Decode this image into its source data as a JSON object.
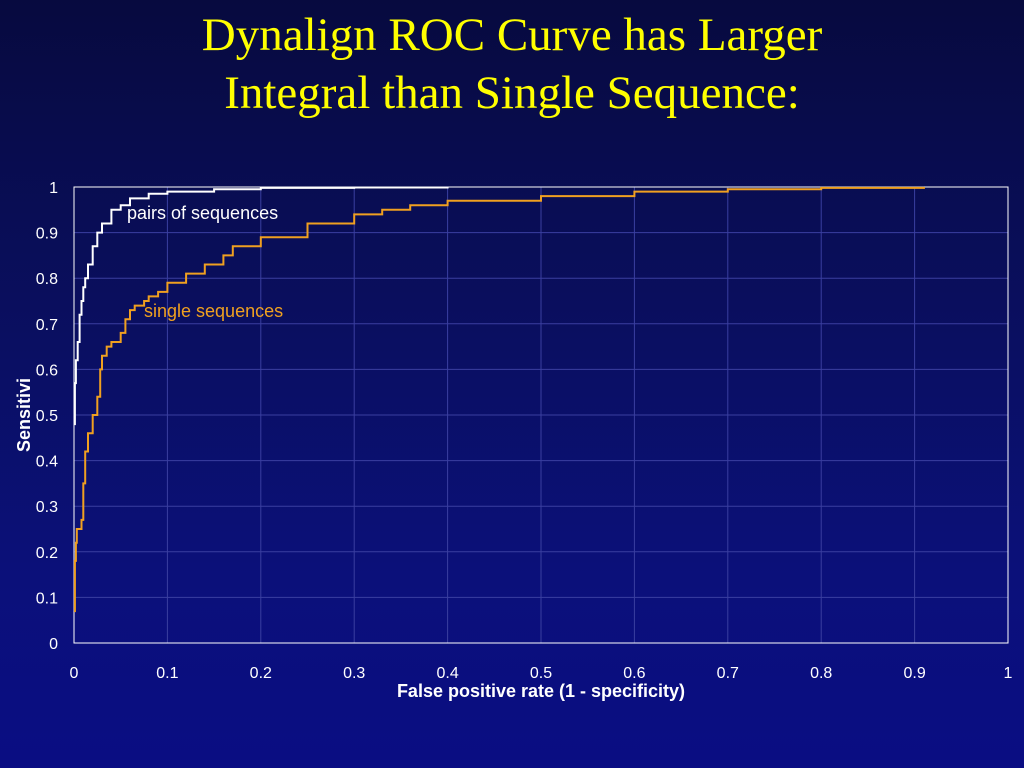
{
  "slide": {
    "title_line1": "Dynalign ROC Curve has Larger",
    "title_line2": "Integral than Single Sequence:"
  },
  "colors": {
    "title": "#ffff00",
    "axis_text": "#ffffff",
    "plot_border": "#ffffff",
    "grid": "#3a3fa0",
    "pairs_series": "#ffffff",
    "single_series": "#f0a020",
    "single_label": "#f0a020"
  },
  "chart_data": {
    "type": "line",
    "xlabel": "False positive rate (1 - specificity)",
    "ylabel": "Sensitivi",
    "xlim": [
      0,
      1
    ],
    "ylim": [
      0,
      1
    ],
    "x_ticks": [
      "0",
      "0.1",
      "0.2",
      "0.3",
      "0.4",
      "0.5",
      "0.6",
      "0.7",
      "0.8",
      "0.9",
      "1"
    ],
    "y_ticks": [
      "0",
      "0.1",
      "0.2",
      "0.3",
      "0.4",
      "0.5",
      "0.6",
      "0.7",
      "0.8",
      "0.9",
      "1"
    ],
    "grid": true,
    "legend": "none",
    "series": [
      {
        "name": "pairs of sequences",
        "points": [
          [
            0.0,
            0.48
          ],
          [
            0.001,
            0.57
          ],
          [
            0.002,
            0.62
          ],
          [
            0.004,
            0.66
          ],
          [
            0.006,
            0.72
          ],
          [
            0.008,
            0.75
          ],
          [
            0.01,
            0.78
          ],
          [
            0.012,
            0.8
          ],
          [
            0.015,
            0.83
          ],
          [
            0.02,
            0.87
          ],
          [
            0.025,
            0.9
          ],
          [
            0.03,
            0.92
          ],
          [
            0.04,
            0.95
          ],
          [
            0.05,
            0.96
          ],
          [
            0.06,
            0.975
          ],
          [
            0.08,
            0.985
          ],
          [
            0.1,
            0.99
          ],
          [
            0.15,
            0.995
          ],
          [
            0.2,
            0.998
          ],
          [
            0.3,
            0.999
          ],
          [
            0.4,
            1.0
          ]
        ]
      },
      {
        "name": "single sequences",
        "points": [
          [
            0.0,
            0.07
          ],
          [
            0.001,
            0.18
          ],
          [
            0.002,
            0.22
          ],
          [
            0.003,
            0.25
          ],
          [
            0.008,
            0.27
          ],
          [
            0.01,
            0.35
          ],
          [
            0.012,
            0.42
          ],
          [
            0.015,
            0.46
          ],
          [
            0.02,
            0.5
          ],
          [
            0.025,
            0.54
          ],
          [
            0.028,
            0.6
          ],
          [
            0.03,
            0.63
          ],
          [
            0.035,
            0.65
          ],
          [
            0.04,
            0.66
          ],
          [
            0.05,
            0.68
          ],
          [
            0.055,
            0.71
          ],
          [
            0.06,
            0.73
          ],
          [
            0.065,
            0.74
          ],
          [
            0.075,
            0.75
          ],
          [
            0.08,
            0.76
          ],
          [
            0.09,
            0.77
          ],
          [
            0.1,
            0.79
          ],
          [
            0.12,
            0.81
          ],
          [
            0.14,
            0.83
          ],
          [
            0.16,
            0.85
          ],
          [
            0.17,
            0.87
          ],
          [
            0.2,
            0.89
          ],
          [
            0.25,
            0.92
          ],
          [
            0.3,
            0.94
          ],
          [
            0.33,
            0.95
          ],
          [
            0.36,
            0.96
          ],
          [
            0.4,
            0.97
          ],
          [
            0.5,
            0.98
          ],
          [
            0.6,
            0.99
          ],
          [
            0.7,
            0.995
          ],
          [
            0.8,
            0.998
          ],
          [
            0.91,
            1.0
          ]
        ]
      }
    ],
    "annotations": [
      {
        "text": "pairs of sequences",
        "series": 0
      },
      {
        "text": "single sequences",
        "series": 1
      }
    ]
  }
}
